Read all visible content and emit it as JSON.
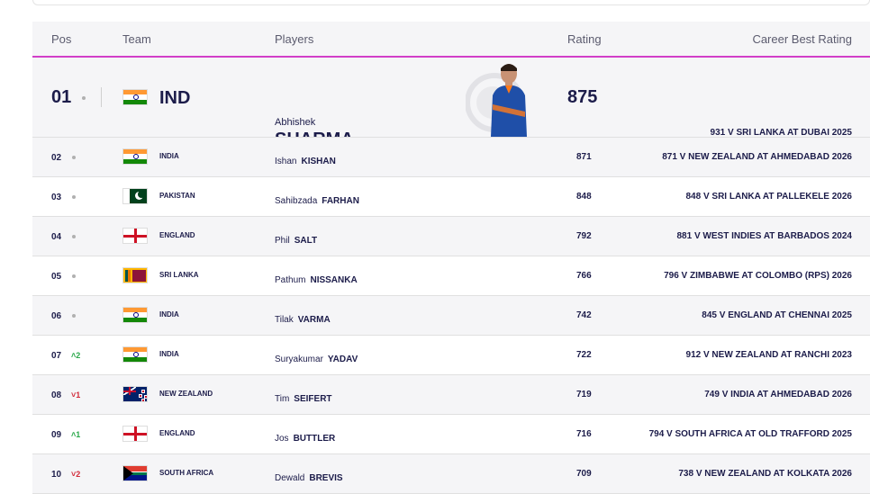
{
  "columns": {
    "pos": "Pos",
    "team": "Team",
    "players": "Players",
    "rating": "Rating",
    "best": "Career Best Rating"
  },
  "leader": {
    "pos": "01",
    "team": "IND",
    "flag": "india-flag",
    "first_name": "Abhishek",
    "last_name": "SHARMA",
    "rating": "875",
    "best": "931 V SRI LANKA AT DUBAI 2025"
  },
  "rows": [
    {
      "pos": "02",
      "move": "",
      "team": "INDIA",
      "flag": "india-flag",
      "first": "Ishan",
      "last": "KISHAN",
      "rating": "871",
      "best": "871 V NEW ZEALAND AT AHMEDABAD 2026"
    },
    {
      "pos": "03",
      "move": "",
      "team": "PAKISTAN",
      "flag": "pakistan-flag",
      "first": "Sahibzada",
      "last": "FARHAN",
      "rating": "848",
      "best": "848 V SRI LANKA AT PALLEKELE 2026"
    },
    {
      "pos": "04",
      "move": "",
      "team": "ENGLAND",
      "flag": "england-flag",
      "first": "Phil",
      "last": "SALT",
      "rating": "792",
      "best": "881 V WEST INDIES AT BARBADOS 2024"
    },
    {
      "pos": "05",
      "move": "",
      "team": "SRI LANKA",
      "flag": "sri-lanka-flag",
      "first": "Pathum",
      "last": "NISSANKA",
      "rating": "766",
      "best": "796 V ZIMBABWE AT COLOMBO (RPS) 2026"
    },
    {
      "pos": "06",
      "move": "",
      "team": "INDIA",
      "flag": "india-flag",
      "first": "Tilak",
      "last": "VARMA",
      "rating": "742",
      "best": "845 V ENGLAND AT CHENNAI 2025"
    },
    {
      "pos": "07",
      "move": "^2",
      "team": "INDIA",
      "flag": "india-flag",
      "first": "Suryakumar",
      "last": "YADAV",
      "rating": "722",
      "best": "912 V NEW ZEALAND AT RANCHI 2023"
    },
    {
      "pos": "08",
      "move": "v1",
      "team": "NEW ZEALAND",
      "flag": "new-zealand-flag",
      "first": "Tim",
      "last": "SEIFERT",
      "rating": "719",
      "best": "749 V INDIA AT AHMEDABAD 2026"
    },
    {
      "pos": "09",
      "move": "^1",
      "team": "ENGLAND",
      "flag": "england-flag",
      "first": "Jos",
      "last": "BUTTLER",
      "rating": "716",
      "best": "794 V SOUTH AFRICA AT OLD TRAFFORD 2025"
    },
    {
      "pos": "10",
      "move": "v2",
      "team": "SOUTH AFRICA",
      "flag": "south-africa-flag",
      "first": "Dewald",
      "last": "BREVIS",
      "rating": "709",
      "best": "738 V NEW ZEALAND AT KOLKATA 2026"
    }
  ]
}
